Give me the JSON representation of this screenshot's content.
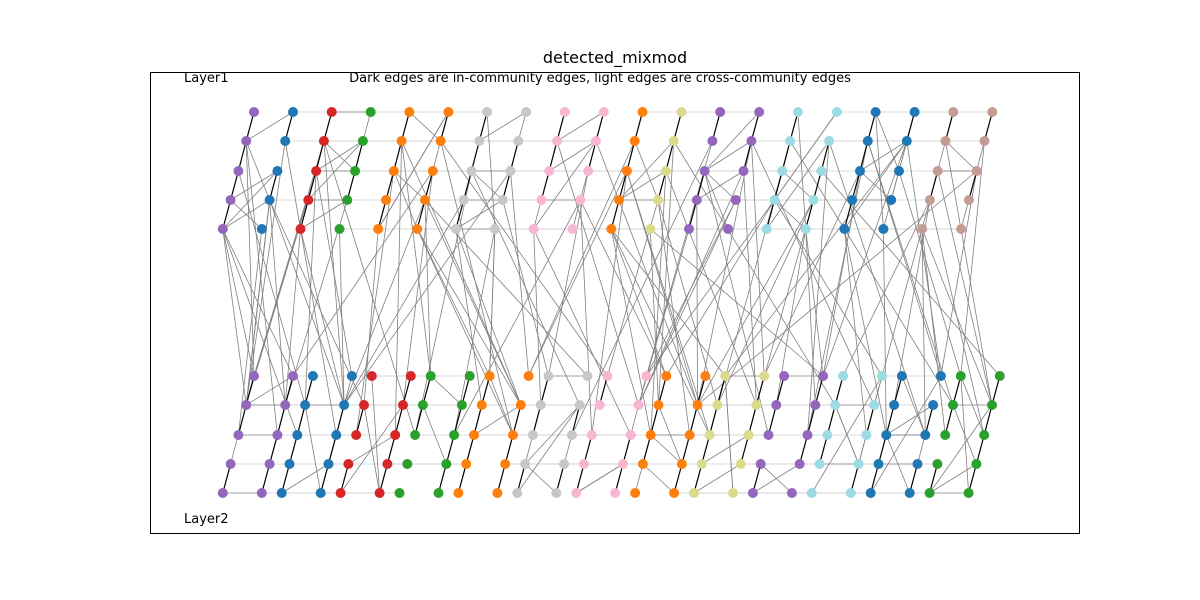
{
  "title": "detected_mixmod",
  "subtitle": "Dark edges are in-community edges, light edges are cross-community edges",
  "layers": [
    {
      "name": "Layer1",
      "position": "top"
    },
    {
      "name": "Layer2",
      "position": "bottom"
    }
  ],
  "community_colors": {
    "purple": "#9467bd",
    "blue": "#1f77b4",
    "red": "#d62728",
    "green": "#2ca02c",
    "orange": "#ff7f0e",
    "gray": "#c7c7c7",
    "pink": "#f7b6d2",
    "olive": "#dbdb8d",
    "cyan": "#9edae5",
    "brown": "#c49c94"
  },
  "edge_colors": {
    "in_community": "#000000",
    "cross_community": "#808080",
    "faint": "#d0d0d0"
  },
  "layer1_groups": [
    [
      "purple",
      "blue"
    ],
    [
      "red",
      "green"
    ],
    [
      "orange",
      "orange"
    ],
    [
      "gray",
      "gray"
    ],
    [
      "pink",
      "pink"
    ],
    [
      "orange",
      "olive"
    ],
    [
      "purple",
      "purple"
    ],
    [
      "cyan",
      "cyan"
    ],
    [
      "blue",
      "blue"
    ],
    [
      "brown",
      "brown"
    ]
  ],
  "layer2_groups": [
    [
      "purple",
      "purple"
    ],
    [
      "blue",
      "blue"
    ],
    [
      "red",
      "red"
    ],
    [
      "green",
      "green"
    ],
    [
      "orange",
      "orange"
    ],
    [
      "gray",
      "gray"
    ],
    [
      "pink",
      "pink"
    ],
    [
      "orange",
      "orange"
    ],
    [
      "olive",
      "olive"
    ],
    [
      "purple",
      "purple"
    ],
    [
      "cyan",
      "cyan"
    ],
    [
      "blue",
      "blue"
    ],
    [
      "green",
      "green"
    ]
  ]
}
